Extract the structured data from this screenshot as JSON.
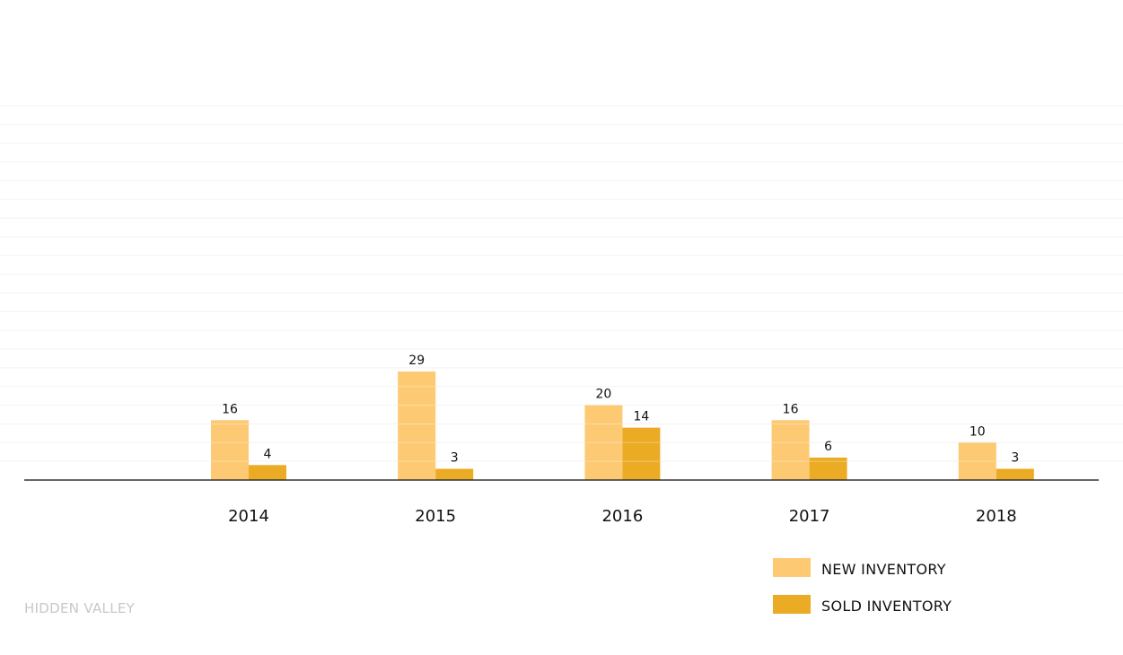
{
  "chart_data": {
    "type": "bar",
    "categories": [
      "2014",
      "2015",
      "2016",
      "2017",
      "2018"
    ],
    "series": [
      {
        "name": "NEW INVENTORY",
        "values": [
          16,
          29,
          20,
          16,
          10
        ],
        "color": "#fdca73"
      },
      {
        "name": "SOLD INVENTORY",
        "values": [
          4,
          3,
          14,
          6,
          3
        ],
        "color": "#ebab24"
      }
    ],
    "ylim": [
      0,
      100
    ],
    "grid": true,
    "legend_position": "bottom-right",
    "data_labels": true
  },
  "watermark": "HIDDEN VALLEY"
}
